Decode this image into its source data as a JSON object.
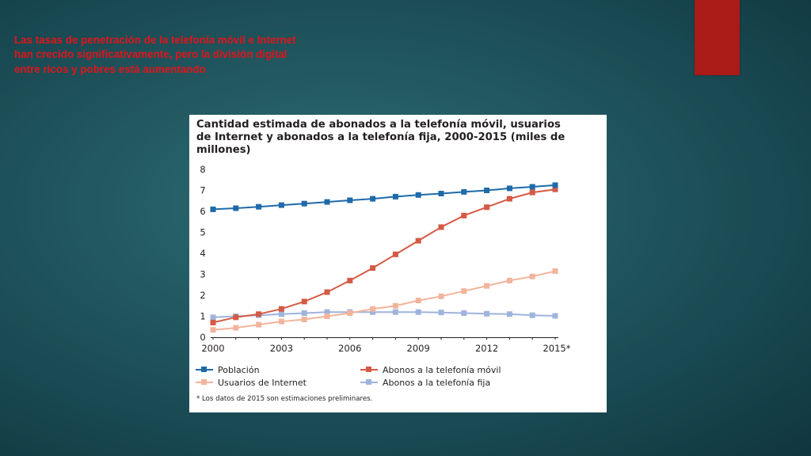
{
  "slide": {
    "caption": "Las tasas de penetración de la telefonía móvil e Internet han crecido significativamente, pero la división digital entre ricos y pobres está aumentando",
    "colors": {
      "background": "#1d525a",
      "accent": "#aa1a17",
      "caption": "#e0141a"
    }
  },
  "figure": {
    "footnote": "* Los datos de 2015 son estimaciones preliminares."
  },
  "chart_data": {
    "type": "line",
    "title": "Cantidad estimada de abonados a la telefonía móvil, usuarios de Internet y abonados a la telefonía fija, 2000-2015 (miles de millones)",
    "xlabel": "",
    "ylabel": "",
    "x": [
      2000,
      2001,
      2002,
      2003,
      2004,
      2005,
      2006,
      2007,
      2008,
      2009,
      2010,
      2011,
      2012,
      2013,
      2014,
      2015
    ],
    "x_tick_values": [
      2000,
      2003,
      2006,
      2009,
      2012,
      2015
    ],
    "x_tick_labels": [
      "2000",
      "2003",
      "2006",
      "2009",
      "2012",
      "2015*"
    ],
    "ylim": [
      0,
      8
    ],
    "y_ticks": [
      0,
      1,
      2,
      3,
      4,
      5,
      6,
      7,
      8
    ],
    "xlim": [
      2000,
      2015
    ],
    "grid": false,
    "legend_position": "bottom",
    "series": [
      {
        "name": "Población",
        "color": "#1f6aa8",
        "values": [
          6.1,
          6.15,
          6.22,
          6.3,
          6.37,
          6.45,
          6.53,
          6.6,
          6.7,
          6.78,
          6.85,
          6.93,
          7.0,
          7.1,
          7.17,
          7.25
        ]
      },
      {
        "name": "Abonos a la telefonía móvil",
        "color": "#d55a45",
        "values": [
          0.7,
          0.95,
          1.1,
          1.35,
          1.7,
          2.15,
          2.7,
          3.3,
          3.95,
          4.6,
          5.25,
          5.8,
          6.2,
          6.6,
          6.9,
          7.05
        ]
      },
      {
        "name": "Usuarios de Internet",
        "color": "#f2b49c",
        "values": [
          0.35,
          0.45,
          0.6,
          0.75,
          0.85,
          1.0,
          1.15,
          1.35,
          1.5,
          1.75,
          1.95,
          2.2,
          2.45,
          2.7,
          2.9,
          3.15
        ]
      },
      {
        "name": "Abonos a la telefonía fija",
        "color": "#9fb3dc",
        "values": [
          0.95,
          1.0,
          1.05,
          1.1,
          1.15,
          1.2,
          1.2,
          1.2,
          1.2,
          1.2,
          1.18,
          1.15,
          1.12,
          1.1,
          1.05,
          1.02
        ]
      }
    ]
  }
}
